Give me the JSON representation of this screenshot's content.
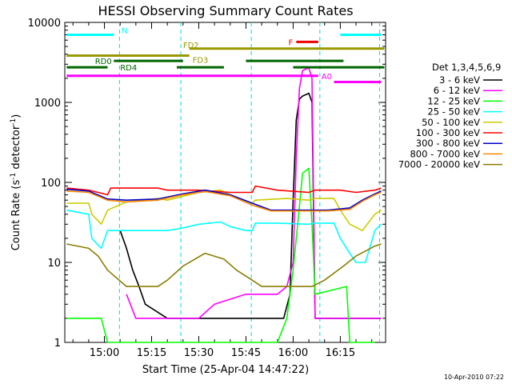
{
  "chart_data": {
    "type": "line",
    "title": "HESSI Observing Summary Count Rates",
    "xlabel": "Start Time (25-Apr-04 14:47:22)",
    "ylabel_main": "Count Rate (s",
    "ylabel_sup1": "-1",
    "ylabel_mid": " detector",
    "ylabel_sup2": "-1",
    "ylabel_end": ")",
    "x_ticks": [
      "15:00",
      "15:15",
      "15:30",
      "15:45",
      "16:00",
      "16:15"
    ],
    "x_tick_minutes": [
      780,
      795,
      810,
      825,
      840,
      855
    ],
    "xlim_minutes": [
      767.4,
      869.4
    ],
    "y_scale": "log",
    "ylim": [
      1,
      10000
    ],
    "y_ticks": [
      "1",
      "10",
      "100",
      "1000",
      "10000"
    ],
    "legend_title": "Det 1,3,4,5,6,9",
    "legend_position": "right",
    "series": [
      {
        "name": "3 - 6 keV",
        "color": "#000000",
        "points": [
          [
            785,
            25
          ],
          [
            787,
            15
          ],
          [
            789,
            8
          ],
          [
            791,
            5
          ],
          [
            793,
            3
          ],
          [
            800,
            2
          ],
          [
            830,
            2
          ],
          [
            837,
            2
          ],
          [
            839,
            4
          ],
          [
            840,
            60
          ],
          [
            841,
            600
          ],
          [
            842,
            1100
          ],
          [
            843,
            1200
          ],
          [
            845,
            1300
          ],
          [
            846,
            1000
          ],
          [
            847,
            2
          ],
          [
            860,
            2
          ],
          [
            868,
            2
          ]
        ]
      },
      {
        "name": "6 - 12 keV",
        "color": "#ff00ff",
        "points": [
          [
            787,
            4
          ],
          [
            790,
            2
          ],
          [
            800,
            2
          ],
          [
            810,
            2
          ],
          [
            815,
            3
          ],
          [
            825,
            4
          ],
          [
            831,
            4
          ],
          [
            835,
            4
          ],
          [
            838,
            5
          ],
          [
            840,
            10
          ],
          [
            841,
            200
          ],
          [
            842,
            1500
          ],
          [
            843,
            2500
          ],
          [
            845,
            2700
          ],
          [
            846,
            2000
          ],
          [
            847,
            2
          ],
          [
            860,
            2
          ],
          [
            868,
            2
          ]
        ]
      },
      {
        "name": "12 - 25 keV",
        "color": "#00ff00",
        "points": [
          [
            768,
            2
          ],
          [
            779,
            2
          ],
          [
            781,
            1
          ],
          [
            800,
            1
          ],
          [
            820,
            1
          ],
          [
            835,
            1
          ],
          [
            838,
            2
          ],
          [
            840,
            8
          ],
          [
            842,
            50
          ],
          [
            843,
            130
          ],
          [
            845,
            150
          ],
          [
            846,
            30
          ],
          [
            847,
            4
          ],
          [
            857,
            5
          ],
          [
            858,
            1
          ],
          [
            866,
            1
          ]
        ]
      },
      {
        "name": "25 - 50 keV",
        "color": "#00ffff",
        "points": [
          [
            768,
            45
          ],
          [
            775,
            40
          ],
          [
            776,
            20
          ],
          [
            779,
            15
          ],
          [
            781,
            25
          ],
          [
            785,
            25
          ],
          [
            798,
            25
          ],
          [
            800,
            25
          ],
          [
            805,
            27
          ],
          [
            810,
            30
          ],
          [
            817,
            32
          ],
          [
            820,
            28
          ],
          [
            825,
            25
          ],
          [
            827,
            25
          ],
          [
            828,
            31
          ],
          [
            835,
            31
          ],
          [
            845,
            30
          ],
          [
            847,
            31
          ],
          [
            853,
            31
          ],
          [
            855,
            20
          ],
          [
            858,
            13
          ],
          [
            860,
            10
          ],
          [
            863,
            10
          ],
          [
            866,
            25
          ],
          [
            868,
            30
          ]
        ]
      },
      {
        "name": "50 - 100 keV",
        "color": "#cccc00",
        "points": [
          [
            768,
            55
          ],
          [
            775,
            55
          ],
          [
            776,
            40
          ],
          [
            779,
            30
          ],
          [
            781,
            45
          ],
          [
            787,
            57
          ],
          [
            797,
            63
          ],
          [
            800,
            60
          ],
          [
            810,
            75
          ],
          [
            817,
            80
          ],
          [
            820,
            70
          ],
          [
            827,
            55
          ],
          [
            828,
            60
          ],
          [
            838,
            63
          ],
          [
            845,
            60
          ],
          [
            847,
            63
          ],
          [
            853,
            63
          ],
          [
            855,
            45
          ],
          [
            858,
            30
          ],
          [
            862,
            25
          ],
          [
            866,
            40
          ],
          [
            868,
            45
          ]
        ]
      },
      {
        "name": "100 - 300 keV",
        "color": "#ff0000",
        "points": [
          [
            768,
            85
          ],
          [
            775,
            80
          ],
          [
            778,
            75
          ],
          [
            781,
            70
          ],
          [
            782,
            85
          ],
          [
            797,
            85
          ],
          [
            800,
            80
          ],
          [
            810,
            80
          ],
          [
            820,
            75
          ],
          [
            827,
            75
          ],
          [
            828,
            90
          ],
          [
            835,
            80
          ],
          [
            845,
            75
          ],
          [
            847,
            80
          ],
          [
            855,
            80
          ],
          [
            860,
            75
          ],
          [
            866,
            80
          ],
          [
            868,
            85
          ]
        ]
      },
      {
        "name": "300 - 800 keV",
        "color": "#0000cc",
        "points": [
          [
            768,
            82
          ],
          [
            775,
            78
          ],
          [
            781,
            62
          ],
          [
            787,
            60
          ],
          [
            797,
            62
          ],
          [
            805,
            72
          ],
          [
            812,
            80
          ],
          [
            820,
            70
          ],
          [
            827,
            55
          ],
          [
            833,
            45
          ],
          [
            845,
            45
          ],
          [
            851,
            45
          ],
          [
            858,
            48
          ],
          [
            862,
            60
          ],
          [
            866,
            72
          ],
          [
            868,
            78
          ]
        ]
      },
      {
        "name": "800 - 7000 keV",
        "color": "#ff8800",
        "points": [
          [
            768,
            78
          ],
          [
            775,
            75
          ],
          [
            781,
            60
          ],
          [
            787,
            57
          ],
          [
            797,
            60
          ],
          [
            805,
            70
          ],
          [
            812,
            77
          ],
          [
            820,
            68
          ],
          [
            827,
            52
          ],
          [
            833,
            44
          ],
          [
            845,
            44
          ],
          [
            851,
            44
          ],
          [
            858,
            46
          ],
          [
            862,
            58
          ],
          [
            866,
            70
          ],
          [
            868,
            75
          ]
        ]
      },
      {
        "name": "7000 - 20000 keV",
        "color": "#8b7d00",
        "points": [
          [
            768,
            17
          ],
          [
            775,
            15
          ],
          [
            778,
            12
          ],
          [
            781,
            8
          ],
          [
            787,
            5
          ],
          [
            797,
            5
          ],
          [
            800,
            6
          ],
          [
            805,
            9
          ],
          [
            812,
            13
          ],
          [
            818,
            11
          ],
          [
            822,
            8
          ],
          [
            827,
            6
          ],
          [
            830,
            5
          ],
          [
            840,
            5
          ],
          [
            846,
            5
          ],
          [
            850,
            6
          ],
          [
            856,
            9
          ],
          [
            860,
            12
          ],
          [
            866,
            16
          ],
          [
            868,
            17
          ]
        ]
      }
    ],
    "state_bars": [
      {
        "label": "N",
        "color": "#00ffff",
        "y": 7000,
        "segments": [
          [
            768,
            783
          ],
          [
            855,
            868
          ]
        ]
      },
      {
        "label": "F",
        "color": "#ee0000",
        "y": 5700,
        "segments": [
          [
            841,
            848
          ]
        ]
      },
      {
        "label": "FD2",
        "color": "#999900",
        "y": 4700,
        "segments": [
          [
            807,
            869
          ]
        ]
      },
      {
        "label": "FD3",
        "color": "#999900",
        "y": 3850,
        "segments": [
          [
            768,
            807
          ]
        ]
      },
      {
        "label": "RD0",
        "color": "#006600",
        "y": 3300,
        "segments": [
          [
            783,
            805
          ],
          [
            825,
            856
          ]
        ]
      },
      {
        "label": "RD4",
        "color": "#006600",
        "y": 2750,
        "segments": [
          [
            768,
            781
          ],
          [
            803,
            818
          ],
          [
            840,
            869
          ]
        ]
      },
      {
        "label": "A0",
        "color": "#ff00ff",
        "y": 2150,
        "segments": [
          [
            768,
            848
          ]
        ]
      },
      {
        "label": "",
        "color": "#ff00ff",
        "y": 1800,
        "segments": [
          [
            853,
            868
          ]
        ]
      }
    ],
    "saa_cyan_lines_minutes": [
      784.8,
      804.3,
      826.7,
      848.5,
      867.5
    ],
    "timestamp": "10-Apr-2010 07:22"
  }
}
